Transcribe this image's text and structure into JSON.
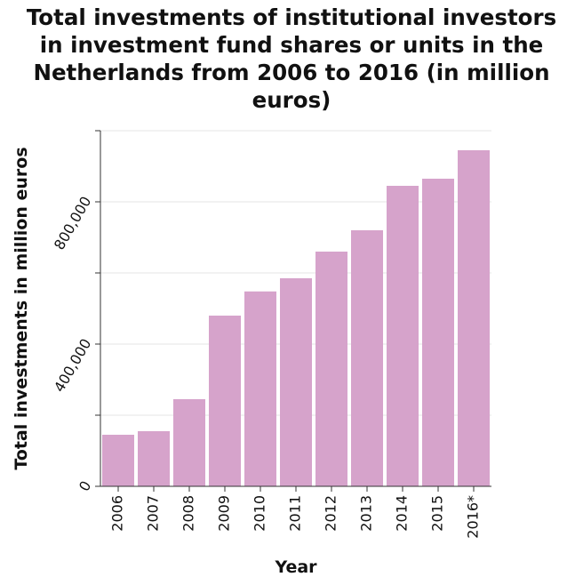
{
  "chart_data": {
    "type": "bar",
    "title": "Total investments of institutional investors\nin investment fund shares or units in the\nNetherlands from 2006 to 2016 (in million\neuros)",
    "xlabel": "Year",
    "ylabel": "Total investments in million euros",
    "categories": [
      "2006",
      "2007",
      "2008",
      "2009",
      "2010",
      "2011",
      "2012",
      "2013",
      "2014",
      "2015",
      "2016*"
    ],
    "values": [
      145000,
      155000,
      245000,
      480000,
      548000,
      585000,
      660000,
      720000,
      845000,
      865000,
      945000
    ],
    "ylim": [
      0,
      1000000
    ],
    "yticks": [
      0,
      200000,
      400000,
      600000,
      800000,
      1000000
    ],
    "ytick_labels": [
      "0",
      "",
      "400,000",
      "",
      "800,000",
      ""
    ],
    "bar_color": "#d6a3cb",
    "grid": "horizontal"
  }
}
